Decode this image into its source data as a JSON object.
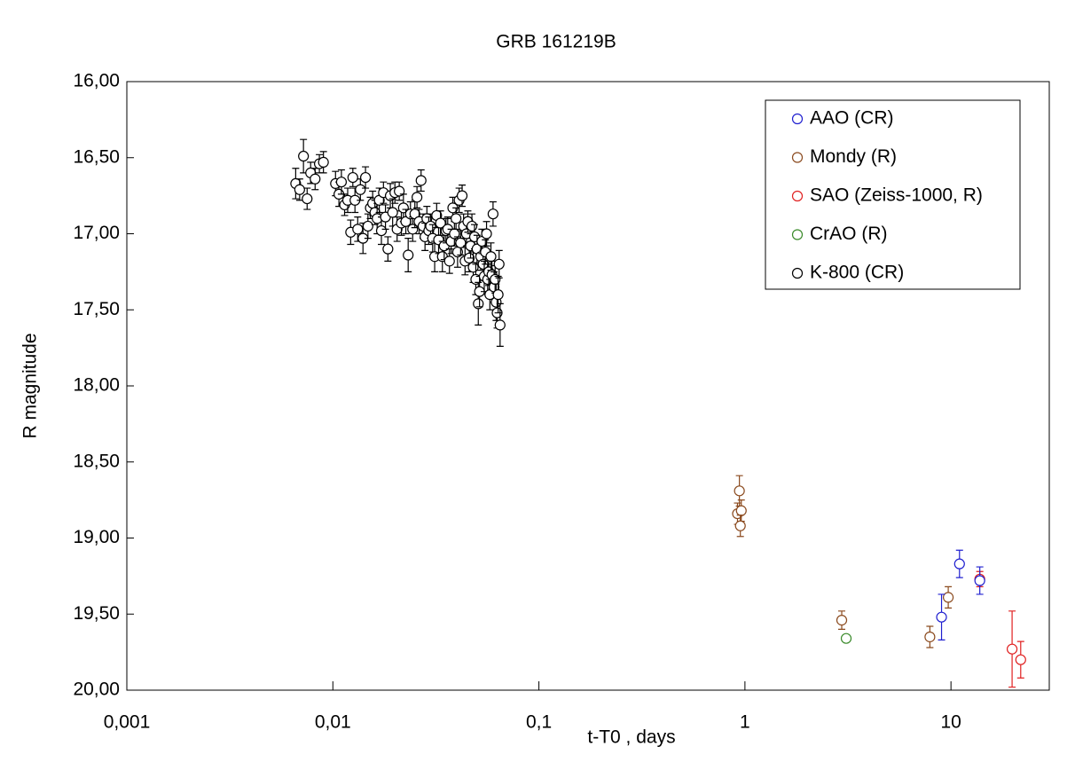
{
  "chart_data": {
    "type": "scatter",
    "title": "GRB 161219B",
    "x_label": "t-T0 , days",
    "y_label": "R magnitude",
    "log_x": true,
    "y_inverted": true,
    "xlim": [
      0.001,
      30
    ],
    "ylim": [
      16,
      20
    ],
    "xticks": [
      {
        "value": 0.001,
        "label": "0,001"
      },
      {
        "value": 0.01,
        "label": "0,01"
      },
      {
        "value": 0.1,
        "label": "0,1"
      },
      1,
      10
    ],
    "yticks": [
      {
        "value": 16,
        "label": "16,00"
      },
      {
        "value": 16.5,
        "label": "16,50"
      },
      {
        "value": 17,
        "label": "17,00"
      },
      {
        "value": 17.5,
        "label": "17,50"
      },
      {
        "value": 18,
        "label": "18,00"
      },
      {
        "value": 18.5,
        "label": "18,50"
      },
      {
        "value": 19,
        "label": "19,00"
      },
      {
        "value": 19.5,
        "label": "19,50"
      },
      {
        "value": 20,
        "label": "20,00"
      }
    ],
    "legend": "upper right",
    "series": [
      {
        "name": "AAO (CR)",
        "color": "#2020d0",
        "x": [
          9.0,
          11.0,
          13.8
        ],
        "values": [
          19.52,
          19.17,
          19.28
        ],
        "errors": [
          0.15,
          0.09,
          0.09
        ]
      },
      {
        "name": "Mondy (R)",
        "color": "#8b4a1e",
        "x": [
          0.92,
          0.94,
          0.96,
          0.95,
          2.95,
          7.9,
          9.7
        ],
        "values": [
          18.84,
          18.69,
          18.82,
          18.92,
          19.54,
          19.65,
          19.39
        ],
        "errors": [
          0.07,
          0.1,
          0.07,
          0.07,
          0.06,
          0.07,
          0.07
        ]
      },
      {
        "name": "SAO (Zeiss-1000, R)",
        "color": "#e02020",
        "x": [
          13.8,
          19.8,
          21.8
        ],
        "values": [
          19.27,
          19.73,
          19.8
        ],
        "errors": [
          0.05,
          0.25,
          0.12
        ]
      },
      {
        "name": "CrAO (R)",
        "color": "#3a8a2a",
        "x": [
          3.1
        ],
        "values": [
          19.66
        ],
        "errors": [
          null
        ]
      },
      {
        "name": "K-800 (CR)",
        "color": "#000000",
        "x": [
          0.0066,
          0.0069,
          0.0072,
          0.0075,
          0.0078,
          0.0082,
          0.0086,
          0.009,
          0.0103,
          0.0107,
          0.011,
          0.0114,
          0.0118,
          0.0122,
          0.0125,
          0.0128,
          0.0132,
          0.0136,
          0.014,
          0.0144,
          0.0148,
          0.0152,
          0.0156,
          0.016,
          0.0164,
          0.0168,
          0.0172,
          0.0176,
          0.018,
          0.0185,
          0.019,
          0.0195,
          0.02,
          0.0205,
          0.021,
          0.0215,
          0.022,
          0.0226,
          0.0232,
          0.0238,
          0.0244,
          0.025,
          0.0256,
          0.0262,
          0.0268,
          0.0274,
          0.028,
          0.0286,
          0.0292,
          0.0298,
          0.0305,
          0.0312,
          0.0319,
          0.0326,
          0.0333,
          0.034,
          0.0347,
          0.0354,
          0.0361,
          0.0368,
          0.0375,
          0.0382,
          0.0389,
          0.0396,
          0.0403,
          0.041,
          0.0417,
          0.0424,
          0.0431,
          0.0438,
          0.0445,
          0.0452,
          0.0459,
          0.0466,
          0.0473,
          0.048,
          0.0487,
          0.0494,
          0.0501,
          0.0508,
          0.0515,
          0.0522,
          0.0529,
          0.0536,
          0.0543,
          0.055,
          0.0557,
          0.0564,
          0.0571,
          0.0578,
          0.0585,
          0.0592,
          0.0599,
          0.0606,
          0.0613,
          0.062,
          0.0627,
          0.0634,
          0.0641,
          0.0648
        ],
        "values": [
          16.67,
          16.71,
          16.49,
          16.77,
          16.6,
          16.64,
          16.54,
          16.53,
          16.67,
          16.74,
          16.66,
          16.81,
          16.78,
          16.99,
          16.63,
          16.78,
          16.97,
          16.71,
          17.03,
          16.63,
          16.95,
          16.83,
          16.8,
          16.86,
          16.9,
          16.78,
          16.98,
          16.73,
          16.89,
          17.1,
          16.75,
          16.86,
          16.73,
          16.97,
          16.72,
          16.93,
          16.83,
          16.92,
          17.14,
          16.87,
          16.97,
          16.87,
          16.76,
          16.92,
          16.65,
          16.95,
          17.02,
          16.9,
          16.98,
          16.95,
          17.03,
          17.15,
          16.88,
          17.04,
          16.93,
          17.15,
          17.08,
          16.98,
          16.97,
          17.18,
          17.05,
          16.83,
          17.0,
          16.9,
          17.12,
          16.78,
          17.06,
          16.75,
          16.95,
          17.18,
          17.0,
          16.92,
          17.16,
          17.08,
          16.95,
          17.22,
          17.02,
          17.3,
          17.1,
          17.46,
          17.38,
          17.15,
          17.05,
          17.2,
          17.28,
          17.12,
          17.0,
          17.3,
          17.25,
          17.4,
          17.15,
          17.27,
          16.87,
          17.35,
          17.3,
          17.45,
          17.52,
          17.4,
          17.2,
          17.6
        ],
        "errors": [
          0.1,
          0.07,
          0.11,
          0.07,
          0.07,
          0.07,
          0.06,
          0.07,
          0.08,
          0.08,
          0.08,
          0.07,
          0.08,
          0.08,
          0.06,
          0.08,
          0.08,
          0.07,
          0.1,
          0.07,
          0.08,
          0.07,
          0.08,
          0.08,
          0.1,
          0.08,
          0.09,
          0.07,
          0.08,
          0.08,
          0.08,
          0.09,
          0.07,
          0.08,
          0.06,
          0.08,
          0.09,
          0.08,
          0.11,
          0.08,
          0.08,
          0.09,
          0.07,
          0.08,
          0.07,
          0.08,
          0.09,
          0.08,
          0.09,
          0.08,
          0.09,
          0.1,
          0.08,
          0.09,
          0.08,
          0.1,
          0.09,
          0.08,
          0.08,
          0.08,
          0.08,
          0.07,
          0.08,
          0.07,
          0.1,
          0.08,
          0.08,
          0.07,
          0.08,
          0.09,
          0.08,
          0.07,
          0.09,
          0.08,
          0.08,
          0.1,
          0.08,
          0.1,
          0.09,
          0.14,
          0.1,
          0.09,
          0.08,
          0.09,
          0.1,
          0.08,
          0.08,
          0.1,
          0.09,
          0.1,
          0.09,
          0.09,
          0.08,
          0.1,
          0.09,
          0.12,
          0.1,
          0.12,
          0.09,
          0.14
        ]
      }
    ]
  }
}
